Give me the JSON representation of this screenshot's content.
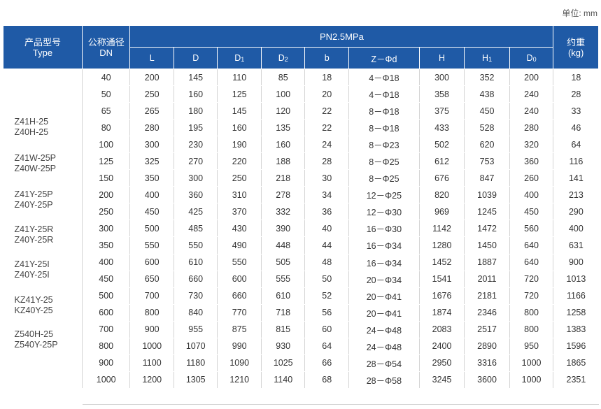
{
  "unit_label": "单位: mm",
  "header": {
    "type_cn": "产品型号",
    "type_en": "Type",
    "dn_cn": "公称通径",
    "dn_en": "DN",
    "pressure": "PN2.5MPa",
    "weight_cn": "约重",
    "weight_unit": "(kg)",
    "cols": [
      {
        "base": "L",
        "sub": ""
      },
      {
        "base": "D",
        "sub": ""
      },
      {
        "base": "D",
        "sub": "1"
      },
      {
        "base": "D",
        "sub": "2"
      },
      {
        "base": "b",
        "sub": ""
      },
      {
        "base": "Z－Φd",
        "sub": ""
      },
      {
        "base": "H",
        "sub": ""
      },
      {
        "base": "H",
        "sub": "1"
      },
      {
        "base": "D",
        "sub": "0"
      }
    ]
  },
  "type_groups": [
    [
      "Z41H-25",
      "Z40H-25"
    ],
    [
      "Z41W-25P",
      "Z40W-25P"
    ],
    [
      "Z41Y-25P",
      "Z40Y-25P"
    ],
    [
      "Z41Y-25R",
      "Z40Y-25R"
    ],
    [
      "Z41Y-25I",
      "Z40Y-25I"
    ],
    [
      "KZ41Y-25",
      "KZ40Y-25"
    ],
    [
      "Z540H-25",
      "Z540Y-25P"
    ]
  ],
  "rows": [
    [
      "40",
      "200",
      "145",
      "110",
      "85",
      "18",
      "4－Φ18",
      "300",
      "352",
      "200",
      "18"
    ],
    [
      "50",
      "250",
      "160",
      "125",
      "100",
      "20",
      "4－Φ18",
      "358",
      "438",
      "240",
      "28"
    ],
    [
      "65",
      "265",
      "180",
      "145",
      "120",
      "22",
      "8－Φ18",
      "375",
      "450",
      "240",
      "33"
    ],
    [
      "80",
      "280",
      "195",
      "160",
      "135",
      "22",
      "8－Φ18",
      "433",
      "528",
      "280",
      "46"
    ],
    [
      "100",
      "300",
      "230",
      "190",
      "160",
      "24",
      "8－Φ23",
      "502",
      "620",
      "320",
      "64"
    ],
    [
      "125",
      "325",
      "270",
      "220",
      "188",
      "28",
      "8－Φ25",
      "612",
      "753",
      "360",
      "116"
    ],
    [
      "150",
      "350",
      "300",
      "250",
      "218",
      "30",
      "8－Φ25",
      "676",
      "847",
      "260",
      "141"
    ],
    [
      "200",
      "400",
      "360",
      "310",
      "278",
      "34",
      "12－Φ25",
      "820",
      "1039",
      "400",
      "213"
    ],
    [
      "250",
      "450",
      "425",
      "370",
      "332",
      "36",
      "12－Φ30",
      "969",
      "1245",
      "450",
      "290"
    ],
    [
      "300",
      "500",
      "485",
      "430",
      "390",
      "40",
      "16－Φ30",
      "1142",
      "1472",
      "560",
      "400"
    ],
    [
      "350",
      "550",
      "550",
      "490",
      "448",
      "44",
      "16－Φ34",
      "1280",
      "1450",
      "640",
      "631"
    ],
    [
      "400",
      "600",
      "610",
      "550",
      "505",
      "48",
      "16－Φ34",
      "1452",
      "1887",
      "640",
      "900"
    ],
    [
      "450",
      "650",
      "660",
      "600",
      "555",
      "50",
      "20－Φ34",
      "1541",
      "2011",
      "720",
      "1013"
    ],
    [
      "500",
      "700",
      "730",
      "660",
      "610",
      "52",
      "20－Φ41",
      "1676",
      "2181",
      "720",
      "1166"
    ],
    [
      "600",
      "800",
      "840",
      "770",
      "718",
      "56",
      "20－Φ41",
      "1874",
      "2346",
      "800",
      "1258"
    ],
    [
      "700",
      "900",
      "955",
      "875",
      "815",
      "60",
      "24－Φ48",
      "2083",
      "2517",
      "800",
      "1383"
    ],
    [
      "800",
      "1000",
      "1070",
      "990",
      "930",
      "64",
      "24－Φ48",
      "2400",
      "2890",
      "950",
      "1596"
    ],
    [
      "900",
      "1100",
      "1180",
      "1090",
      "1025",
      "66",
      "28－Φ54",
      "2950",
      "3316",
      "1000",
      "1865"
    ],
    [
      "1000",
      "1200",
      "1305",
      "1210",
      "1140",
      "68",
      "28－Φ58",
      "3245",
      "3600",
      "1000",
      "2351"
    ]
  ]
}
